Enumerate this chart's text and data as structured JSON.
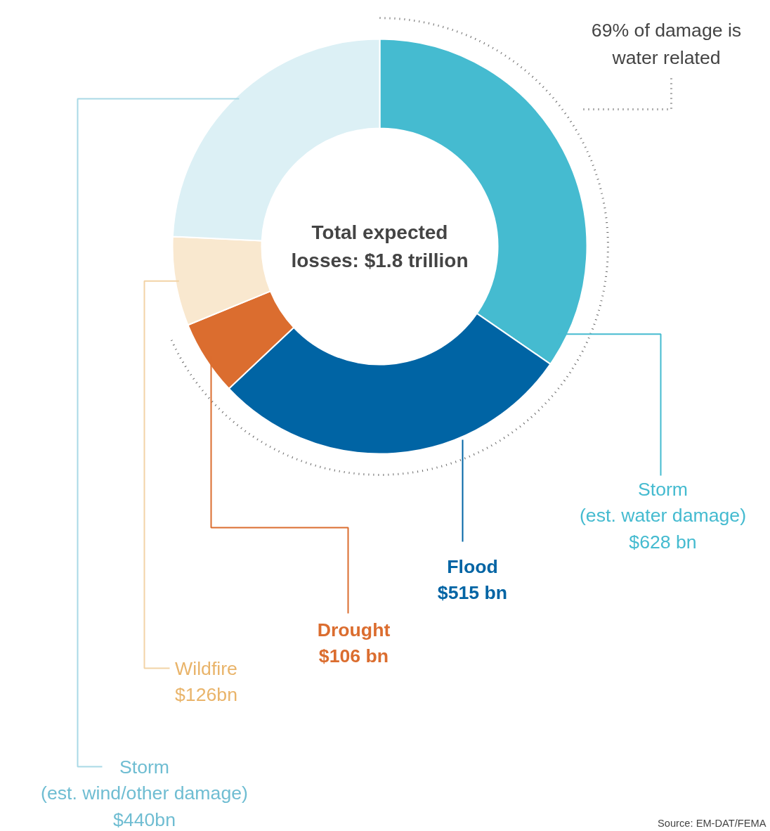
{
  "chart_data": {
    "type": "donut",
    "categories": [
      "Storm\n(est. water damage)",
      "Flood",
      "Drought",
      "Wildfire",
      "Storm\n(est. wind/other damage)"
    ],
    "values": [
      628,
      515,
      106,
      126,
      440
    ],
    "value_labels": [
      "$628 bn",
      "$515 bn",
      "$106 bn",
      "$126bn",
      "$440bn"
    ],
    "colors": [
      "#45bbd0",
      "#0064a4",
      "#db6d2f",
      "#f9e8cf",
      "#dcf0f5"
    ],
    "annotations": [
      "Total expected\nlosses: $1.8 trillion",
      "69% of damage is\nwater related",
      "Source: EM-DAT/FEMA"
    ]
  }
}
